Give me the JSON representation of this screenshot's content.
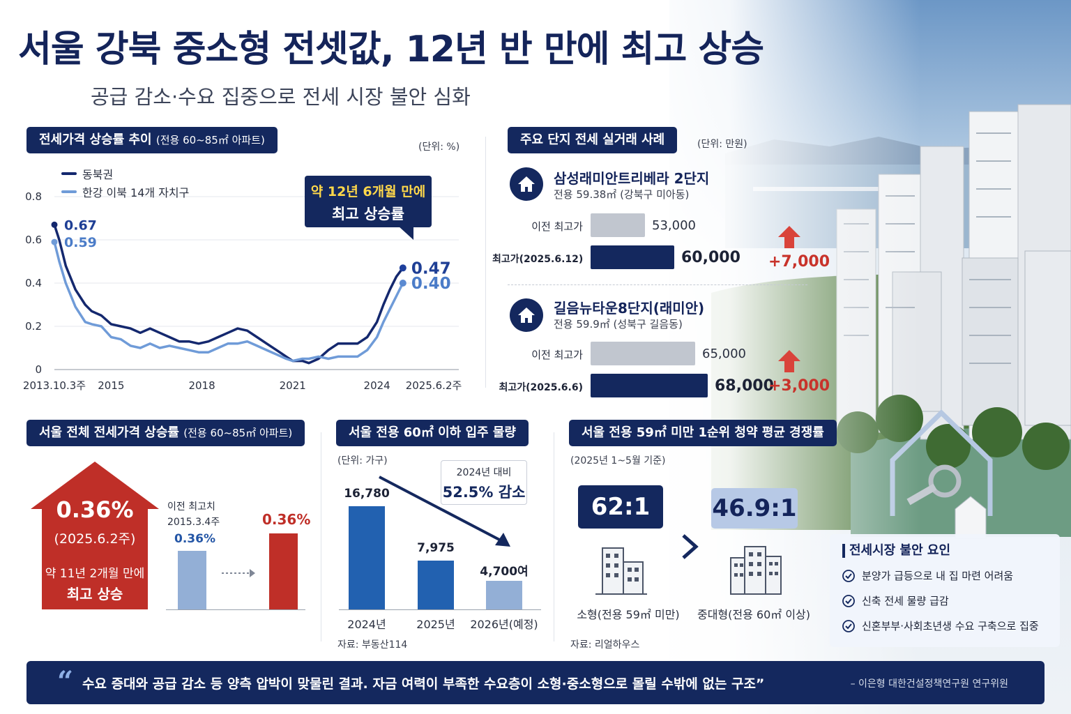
{
  "header": {
    "title": "서울 강북 중소형 전셋값, 12년 반 만에 최고 상승",
    "subtitle": "공급 감소·수요 집중으로 전세 시장 불안 심화"
  },
  "trend": {
    "pill": "전세가격 상승률 추이",
    "pill_note": "(전용 60~85㎡ 아파트)",
    "unit": "(단위: %)",
    "callout_l1": "약 12년 6개월 만에",
    "callout_l2": "최고 상승률"
  },
  "complexes": {
    "pill": "주요 단지 전세 실거래 사례",
    "unit": "(단위: 만원)",
    "items": [
      {
        "name": "삼성래미안트리베라 2단지",
        "area": "전용 59.38㎡ (강북구 미아동)",
        "prev_label": "이전 최고가",
        "prev_value": 53000,
        "prev_text": "53,000",
        "cur_label": "최고가(2025.6.12)",
        "cur_value": 60000,
        "cur_text": "60,000",
        "delta": "+7,000"
      },
      {
        "name": "길음뉴타운8단지(래미안)",
        "area": "전용 59.9㎡ (성북구 길음동)",
        "prev_label": "이전 최고가",
        "prev_value": 65000,
        "prev_text": "65,000",
        "cur_label": "최고가(2025.6.6)",
        "cur_value": 68000,
        "cur_text": "68,000",
        "delta": "+3,000"
      }
    ]
  },
  "seoul_rate": {
    "pill": "서울 전체 전세가격 상승률",
    "pill_note": "(전용 60~85㎡ 아파트)",
    "value": "0.36%",
    "date": "(2025.6.2주)",
    "caption_l1": "약 11년 2개월 만에",
    "caption_l2": "최고 상승",
    "prev_label_l1": "이전 최고치",
    "prev_label_l2": "2015.3.4주",
    "prev_value": "0.36%",
    "cur_value": "0.36%"
  },
  "supply": {
    "pill": "서울 전용 60㎡ 이하 입주 물량",
    "unit": "(단위: 가구)",
    "note_l1": "2024년 대비",
    "note_l2": "52.5% 감소",
    "source": "자료: 부동산114"
  },
  "competition": {
    "pill": "서울 전용 59㎡ 미만 1순위 청약 평균 경쟁률",
    "basis": "(2025년 1~5월 기준)",
    "small_ratio": "62:1",
    "small_label": "소형(전용 59㎡ 미만)",
    "mid_ratio": "46.9:1",
    "mid_label": "중대형(전용 60㎡ 이상)",
    "source": "자료: 리얼하우스"
  },
  "factors": {
    "heading": "전세시장 불안 요인",
    "items": [
      "분양가 급등으로 내 집 마련 어려움",
      "신축 전세 물량 급감",
      "신혼부부·사회초년생 수요 구축으로 집중"
    ]
  },
  "quote": {
    "text": "수요 증대와 공급 감소 등 양측 압박이 맞물린 결과. 자금 여력이 부족한 수요층이 소형·중소형으로 몰릴 수밖에 없는 구조”",
    "author": "– 이은형 대한건설정책연구원 연구위원"
  },
  "colors": {
    "navy": "#14285e",
    "series_dark": "#14286e",
    "series_light": "#6f9bd8",
    "red": "#c0302a",
    "supply_dark": "#2261b0",
    "supply_light": "#93afd6"
  },
  "chart_data": [
    {
      "type": "line",
      "title": "전세가격 상승률 추이 (전용 60~85㎡ 아파트)",
      "ylabel": "(단위: %)",
      "ylim": [
        0,
        0.8
      ],
      "yticks": [
        0,
        0.2,
        0.4,
        0.6,
        0.8
      ],
      "x_ticks": [
        {
          "label": "2013.10.3주",
          "t": 2013.75
        },
        {
          "label": "2015",
          "t": 2015.5
        },
        {
          "label": "2018",
          "t": 2018.3
        },
        {
          "label": "2021",
          "t": 2021.1
        },
        {
          "label": "2024",
          "t": 2023.7
        },
        {
          "label": "2025.6.2주",
          "t": 2025.45
        }
      ],
      "legend": "top-left",
      "series": [
        {
          "name": "동북권",
          "start_label": "0.67",
          "end_label": "0.47",
          "points": [
            [
              2013.75,
              0.67
            ],
            [
              2013.9,
              0.6
            ],
            [
              2014.1,
              0.48
            ],
            [
              2014.4,
              0.37
            ],
            [
              2014.7,
              0.3
            ],
            [
              2014.9,
              0.27
            ],
            [
              2015.2,
              0.25
            ],
            [
              2015.5,
              0.21
            ],
            [
              2015.8,
              0.2
            ],
            [
              2016.1,
              0.19
            ],
            [
              2016.4,
              0.17
            ],
            [
              2016.7,
              0.19
            ],
            [
              2017.0,
              0.17
            ],
            [
              2017.3,
              0.15
            ],
            [
              2017.6,
              0.13
            ],
            [
              2017.9,
              0.13
            ],
            [
              2018.2,
              0.12
            ],
            [
              2018.5,
              0.13
            ],
            [
              2018.8,
              0.15
            ],
            [
              2019.1,
              0.17
            ],
            [
              2019.4,
              0.19
            ],
            [
              2019.7,
              0.18
            ],
            [
              2020.0,
              0.15
            ],
            [
              2020.3,
              0.12
            ],
            [
              2020.6,
              0.09
            ],
            [
              2020.9,
              0.06
            ],
            [
              2021.1,
              0.04
            ],
            [
              2021.4,
              0.04
            ],
            [
              2021.6,
              0.03
            ],
            [
              2021.9,
              0.05
            ],
            [
              2022.2,
              0.09
            ],
            [
              2022.5,
              0.12
            ],
            [
              2022.8,
              0.12
            ],
            [
              2023.1,
              0.12
            ],
            [
              2023.4,
              0.15
            ],
            [
              2023.7,
              0.22
            ],
            [
              2023.9,
              0.3
            ],
            [
              2024.1,
              0.37
            ],
            [
              2024.3,
              0.43
            ],
            [
              2024.5,
              0.47
            ]
          ]
        },
        {
          "name": "한강 이북 14개 자치구",
          "start_label": "0.59",
          "end_label": "0.40",
          "points": [
            [
              2013.75,
              0.59
            ],
            [
              2013.9,
              0.5
            ],
            [
              2014.1,
              0.4
            ],
            [
              2014.4,
              0.29
            ],
            [
              2014.7,
              0.22
            ],
            [
              2014.9,
              0.21
            ],
            [
              2015.2,
              0.2
            ],
            [
              2015.5,
              0.15
            ],
            [
              2015.8,
              0.14
            ],
            [
              2016.1,
              0.11
            ],
            [
              2016.4,
              0.1
            ],
            [
              2016.7,
              0.12
            ],
            [
              2017.0,
              0.1
            ],
            [
              2017.3,
              0.11
            ],
            [
              2017.6,
              0.1
            ],
            [
              2017.9,
              0.09
            ],
            [
              2018.2,
              0.08
            ],
            [
              2018.5,
              0.08
            ],
            [
              2018.8,
              0.1
            ],
            [
              2019.1,
              0.12
            ],
            [
              2019.4,
              0.12
            ],
            [
              2019.7,
              0.13
            ],
            [
              2020.0,
              0.11
            ],
            [
              2020.3,
              0.09
            ],
            [
              2020.6,
              0.07
            ],
            [
              2020.9,
              0.05
            ],
            [
              2021.1,
              0.04
            ],
            [
              2021.4,
              0.05
            ],
            [
              2021.6,
              0.05
            ],
            [
              2021.9,
              0.06
            ],
            [
              2022.2,
              0.05
            ],
            [
              2022.5,
              0.06
            ],
            [
              2022.8,
              0.06
            ],
            [
              2023.1,
              0.06
            ],
            [
              2023.4,
              0.09
            ],
            [
              2023.7,
              0.15
            ],
            [
              2023.9,
              0.22
            ],
            [
              2024.1,
              0.28
            ],
            [
              2024.3,
              0.34
            ],
            [
              2024.5,
              0.4
            ]
          ]
        }
      ]
    },
    {
      "type": "bar",
      "title": "서울 전용 60㎡ 이하 입주 물량",
      "ylabel": "(단위: 가구)",
      "categories": [
        "2024년",
        "2025년",
        "2026년(예정)"
      ],
      "values": [
        16780,
        7975,
        4700
      ],
      "value_labels": [
        "16,780",
        "7,975",
        "4,700여"
      ]
    }
  ]
}
